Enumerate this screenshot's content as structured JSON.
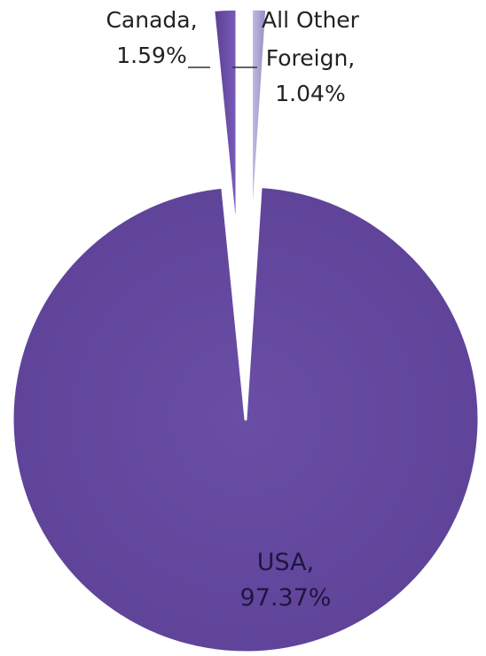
{
  "chart_data": {
    "type": "pie",
    "title": "",
    "categories": [
      "USA",
      "Canada",
      "All Other Foreign"
    ],
    "values": [
      97.37,
      1.59,
      1.04
    ],
    "data_labels": [
      {
        "name": "USA,",
        "value": "97.37%"
      },
      {
        "name": "Canada,",
        "value": "1.59%"
      },
      {
        "name_line1": "All Other",
        "name_line2": "Foreign,",
        "value": "1.04%"
      }
    ],
    "colors": [
      "#6b4fa6",
      "#6f51ad",
      "#a9a3d2"
    ],
    "exploded_slices": [
      "Canada",
      "All Other Foreign"
    ],
    "legend": "none"
  }
}
